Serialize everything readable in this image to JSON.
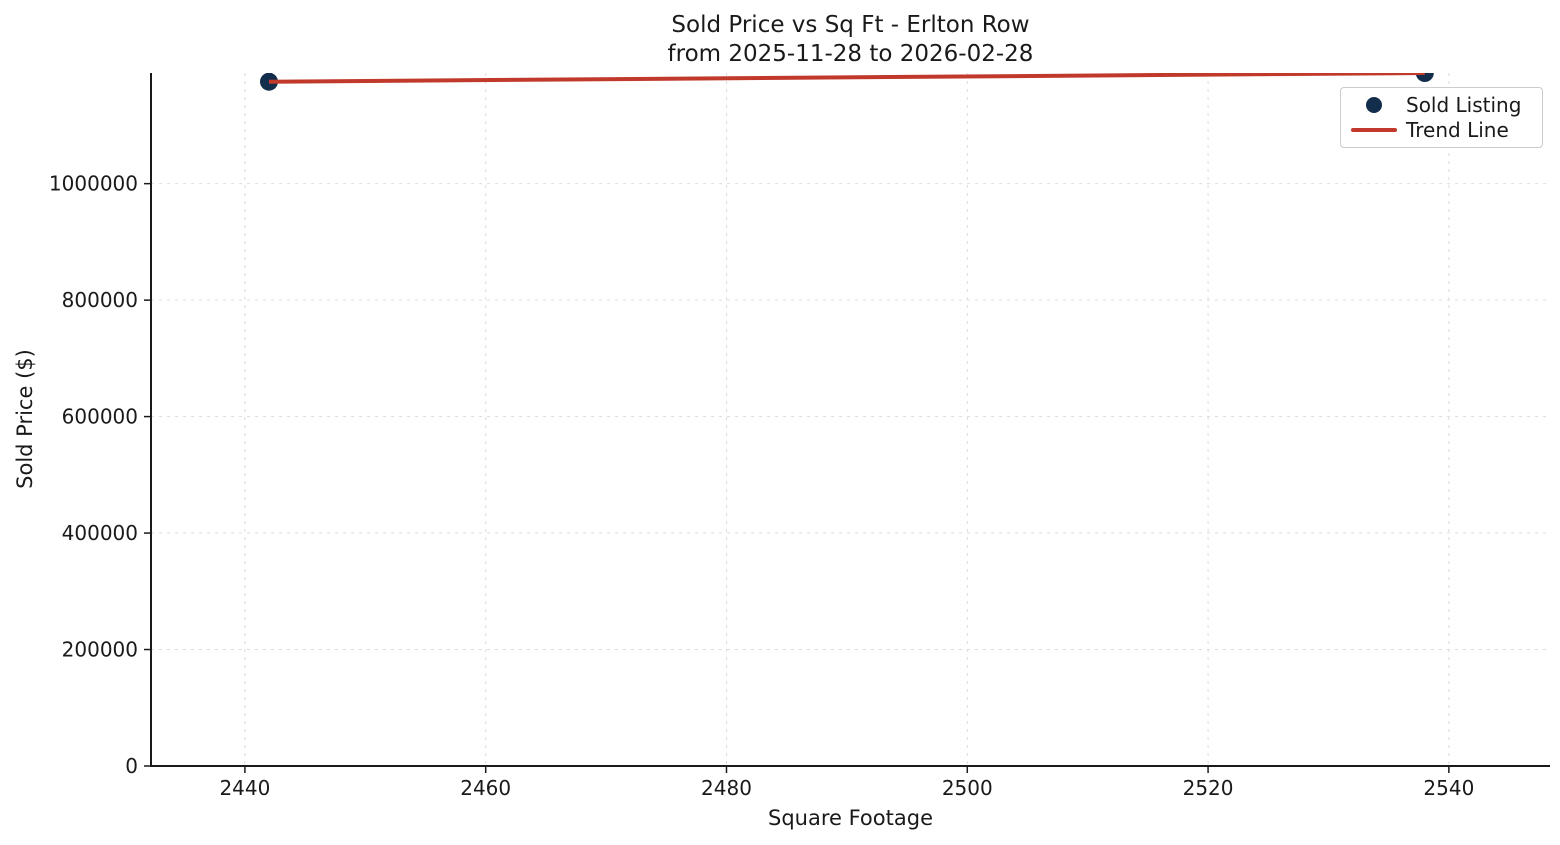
{
  "figure": {
    "title_line1": "Sold Price vs Sq Ft - Erlton Row",
    "title_line2": "from 2025-11-28 to 2026-02-28",
    "xlabel": "Square Footage",
    "ylabel": "Sold Price ($)"
  },
  "legend": {
    "position": "upper right",
    "items": [
      {
        "label": "Sold Listing",
        "marker": "dot",
        "color": "#132e4d"
      },
      {
        "label": "Trend Line",
        "marker": "line",
        "color": "#c0392b"
      }
    ]
  },
  "chart_data": {
    "type": "scatter",
    "title": "Sold Price vs Sq Ft - Erlton Row\nfrom 2025-11-28 to 2026-02-28",
    "xlabel": "Square Footage",
    "ylabel": "Sold Price ($)",
    "xlim": [
      2432.2,
      2548.4
    ],
    "ylim": [
      0,
      1190000
    ],
    "xticks": [
      2440,
      2460,
      2480,
      2500,
      2520,
      2540
    ],
    "yticks": [
      0,
      200000,
      400000,
      600000,
      800000,
      1000000
    ],
    "grid": {
      "visible": true,
      "style": "dashed",
      "color": "#dcdcdc"
    },
    "legend_position": "upper right",
    "series": [
      {
        "name": "Sold Listing",
        "type": "scatter",
        "color": "#132e4d",
        "points": [
          {
            "x": 2442,
            "y": 1175000
          },
          {
            "x": 2538,
            "y": 1190000
          }
        ]
      },
      {
        "name": "Trend Line",
        "type": "line",
        "color": "#c0392b",
        "points": [
          {
            "x": 2442,
            "y": 1175000
          },
          {
            "x": 2538,
            "y": 1190000
          }
        ]
      }
    ],
    "colors": {
      "point": "#132e4d",
      "trend_line": "#c0392b",
      "grid": "#dcdcdc",
      "axis": "#1a1a1a",
      "background": "#ffffff"
    }
  }
}
